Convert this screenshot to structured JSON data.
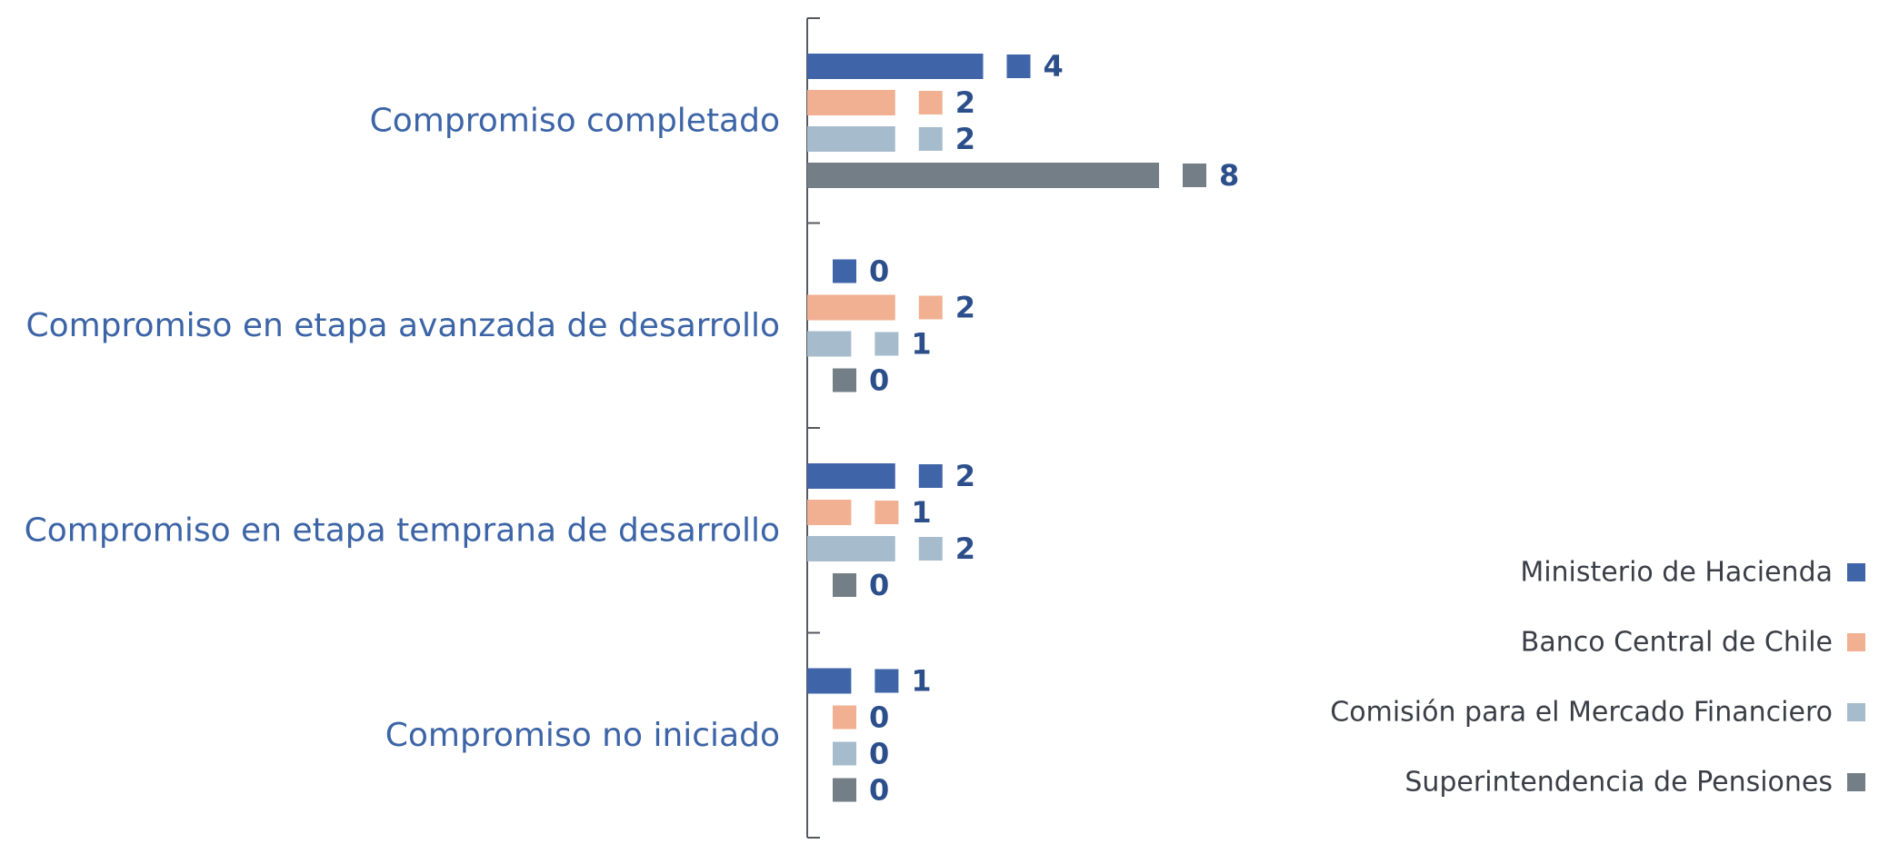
{
  "chart_data": {
    "type": "bar",
    "orientation": "horizontal",
    "categories": [
      "Compromiso completado",
      "Compromiso en etapa avanzada de desarrollo",
      "Compromiso en etapa temprana de desarrollo",
      "Compromiso no iniciado"
    ],
    "series": [
      {
        "name": "Ministerio de Hacienda",
        "color": "#3f65a8",
        "values": [
          4,
          0,
          2,
          1
        ]
      },
      {
        "name": "Banco Central de Chile",
        "color": "#f0b091",
        "values": [
          2,
          2,
          1,
          0
        ]
      },
      {
        "name": "Comisión para el Mercado Financiero",
        "color": "#a6bccd",
        "values": [
          2,
          1,
          2,
          0
        ]
      },
      {
        "name": "Superintendencia de Pensiones",
        "color": "#737e86",
        "values": [
          8,
          0,
          0,
          0
        ]
      }
    ],
    "xlim": [
      0,
      8
    ],
    "grid": false,
    "legend_position": "bottom-right",
    "title": "",
    "xlabel": "",
    "ylabel": ""
  }
}
